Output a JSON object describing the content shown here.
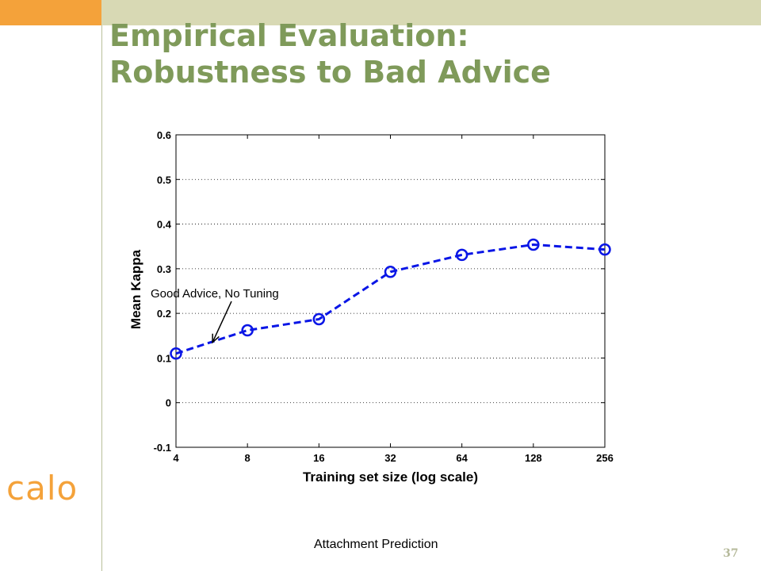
{
  "slide": {
    "title_line1": "Empirical Evaluation:",
    "title_line2": "Robustness to Bad Advice",
    "logo_text": "calo",
    "caption": "Attachment Prediction",
    "page_number": "37"
  },
  "colors": {
    "corner_box": "#f4a23a",
    "top_bar": "#d8d9b4",
    "title": "#7f9a5a",
    "logo": "#f4a23a",
    "rule": "#b9c09a",
    "page_number": "#b5b99a",
    "series": "#0a16e6"
  },
  "chart_data": {
    "type": "line",
    "x_scale": "log2",
    "x": [
      4,
      8,
      16,
      32,
      64,
      128,
      256
    ],
    "x_tick_labels": [
      "4",
      "8",
      "16",
      "32",
      "64",
      "128",
      "256"
    ],
    "y_ticks": [
      -0.1,
      0,
      0.1,
      0.2,
      0.3,
      0.4,
      0.5,
      0.6
    ],
    "y_tick_labels": [
      "-0.1",
      "0",
      "0.1",
      "0.2",
      "0.3",
      "0.4",
      "0.5",
      "0.6"
    ],
    "xlim": [
      4,
      256
    ],
    "ylim": [
      -0.1,
      0.6
    ],
    "xlabel": "Training set size (log scale)",
    "ylabel": "Mean Kappa",
    "grid": "horizontal dotted",
    "series": [
      {
        "values": [
          0.11,
          0.162,
          0.187,
          0.293,
          0.331,
          0.354,
          0.343
        ],
        "line_style": "dashed",
        "marker": "circle"
      }
    ],
    "annotations": [
      {
        "text": "Good Advice, No Tuning",
        "arrow_to_x": 5.7,
        "arrow_to_y": 0.135
      }
    ]
  }
}
